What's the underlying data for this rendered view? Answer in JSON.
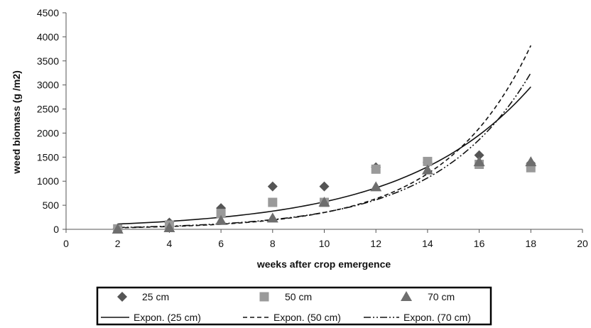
{
  "chart_data": {
    "type": "scatter",
    "title": "",
    "xlabel": "weeks after crop emergence",
    "ylabel": "weed biomass (g /m2)",
    "xlim": [
      0,
      20
    ],
    "ylim": [
      0,
      4500
    ],
    "x_ticks": [
      0,
      2,
      4,
      6,
      8,
      10,
      12,
      14,
      16,
      18,
      20
    ],
    "y_ticks": [
      0,
      500,
      1000,
      1500,
      2000,
      2500,
      3000,
      3500,
      4000,
      4500
    ],
    "grid": false,
    "legend_position": "bottom",
    "series": [
      {
        "name": "25 cm",
        "marker": "diamond",
        "color": "#555555",
        "x": [
          2,
          4,
          6,
          8,
          10,
          12,
          14,
          16,
          18
        ],
        "y": [
          20,
          140,
          440,
          890,
          890,
          1290,
          1390,
          1540,
          1370
        ]
      },
      {
        "name": "50 cm",
        "marker": "square",
        "color": "#9a9a9a",
        "x": [
          2,
          4,
          6,
          8,
          10,
          12,
          14,
          16,
          18
        ],
        "y": [
          10,
          90,
          330,
          560,
          560,
          1250,
          1410,
          1350,
          1280
        ]
      },
      {
        "name": "70 cm",
        "marker": "triangle",
        "color": "#6e6e6e",
        "x": [
          2,
          4,
          6,
          8,
          10,
          12,
          14,
          16,
          18
        ],
        "y": [
          0,
          30,
          180,
          230,
          560,
          880,
          1230,
          1400,
          1400
        ]
      }
    ],
    "trendlines": [
      {
        "name": "Expon. (25 cm)",
        "type": "exponential",
        "dash": "solid",
        "x": [
          2,
          18
        ],
        "y": [
          110,
          2960
        ]
      },
      {
        "name": "Expon. (50 cm)",
        "type": "exponential",
        "dash": "dashed",
        "x": [
          2,
          18
        ],
        "y": [
          32,
          3820
        ]
      },
      {
        "name": "Expon. (70 cm)",
        "type": "exponential",
        "dash": "dash-dot-dot",
        "x": [
          2,
          18
        ],
        "y": [
          38,
          3250
        ]
      }
    ]
  }
}
